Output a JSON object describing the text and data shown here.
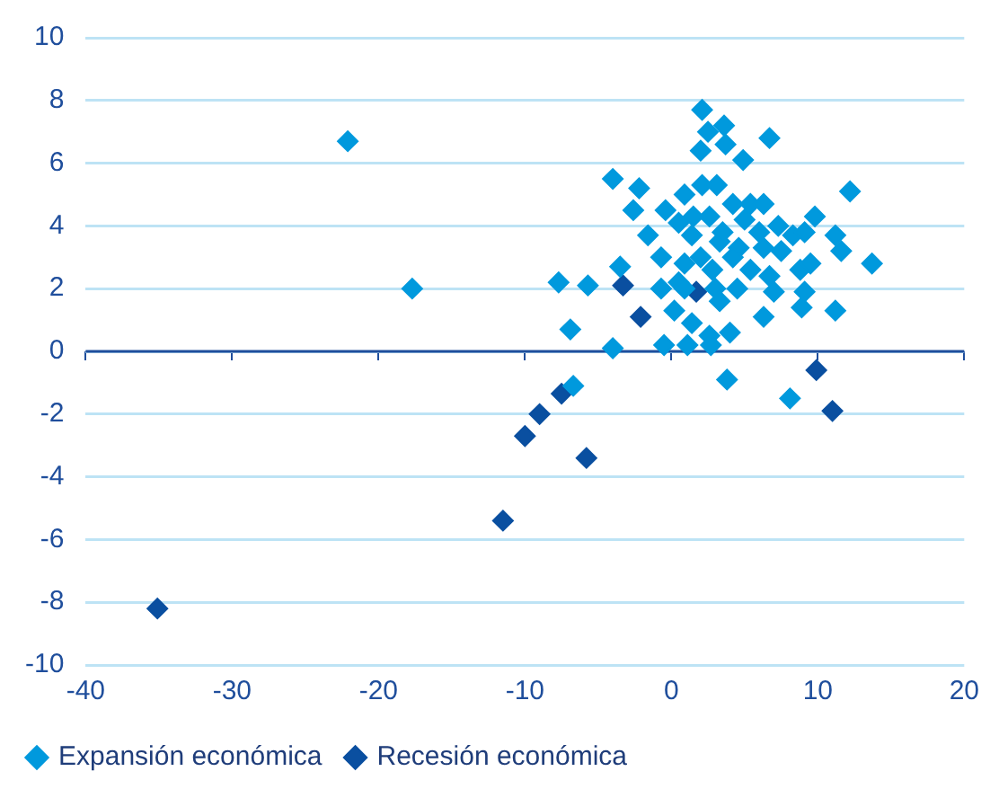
{
  "chart_data": {
    "type": "scatter",
    "marker": "diamond",
    "grid": "y",
    "ref_lines": [
      {
        "axis": "y",
        "value": 0,
        "color": "#1f4e9c"
      }
    ],
    "legend": "bottom",
    "xlim": [
      -40,
      20
    ],
    "xticks": [
      -40,
      -30,
      -20,
      -10,
      0,
      10,
      20
    ],
    "ylim": [
      -10,
      10
    ],
    "yticks": [
      -10,
      -8,
      -6,
      -4,
      -2,
      0,
      2,
      4,
      6,
      8,
      10
    ],
    "series": [
      {
        "name": "Expansión económica",
        "color": "#0099dd",
        "x": [
          -22.1,
          -17.7,
          -7.7,
          -6.9,
          -6.7,
          -5.7,
          -4.0,
          -2.2,
          -4.0,
          -2.6,
          -1.6,
          -3.5,
          2.1,
          2.5,
          3.6,
          3.7,
          6.7,
          2.0,
          4.9,
          12.2,
          0.9,
          2.1,
          3.1,
          -0.4,
          0.5,
          4.2,
          5.4,
          6.3,
          9.8,
          11.2,
          13.7,
          2.6,
          7.3,
          8.3,
          9.1,
          11.6,
          1.4,
          3.3,
          4.6,
          6.3,
          7.5,
          -0.7,
          0.9,
          4.2,
          5.4,
          6.7,
          8.8,
          9.5,
          -0.7,
          0.5,
          3.0,
          7.0,
          0.9,
          3.3,
          9.1,
          8.9,
          11.2,
          6.3,
          0.2,
          1.4,
          2.6,
          4.0,
          -0.5,
          1.1,
          2.7,
          3.8,
          8.1,
          3.5,
          2.0,
          5.0,
          1.5,
          4.5,
          6.0,
          2.8
        ],
        "values": [
          6.7,
          2.0,
          2.2,
          0.7,
          -1.1,
          2.1,
          5.5,
          5.2,
          0.1,
          4.5,
          3.7,
          2.7,
          7.7,
          7.0,
          7.2,
          6.6,
          6.8,
          6.4,
          6.1,
          5.1,
          5.0,
          5.3,
          5.3,
          4.5,
          4.1,
          4.7,
          4.7,
          4.7,
          4.3,
          3.7,
          2.8,
          4.3,
          4.0,
          3.7,
          3.8,
          3.2,
          3.7,
          3.5,
          3.3,
          3.3,
          3.2,
          3.0,
          2.8,
          3.0,
          2.6,
          2.4,
          2.6,
          2.8,
          2.0,
          2.2,
          2.0,
          1.9,
          2.0,
          1.6,
          1.9,
          1.4,
          1.3,
          1.1,
          1.3,
          0.9,
          0.5,
          0.6,
          0.2,
          0.2,
          0.2,
          -0.9,
          -1.5,
          3.8,
          3.0,
          4.2,
          4.3,
          2.0,
          3.8,
          2.6
        ]
      },
      {
        "name": "Recesión económica",
        "color": "#0a4fa0",
        "x": [
          -3.3,
          1.7,
          -2.1,
          9.9,
          11.0,
          -7.5,
          -9.0,
          -10.0,
          -5.8,
          -11.5,
          -35.1
        ],
        "values": [
          2.1,
          1.9,
          1.1,
          -0.6,
          -1.9,
          -1.35,
          -2.0,
          -2.7,
          -3.4,
          -5.4,
          -8.2
        ]
      }
    ]
  }
}
